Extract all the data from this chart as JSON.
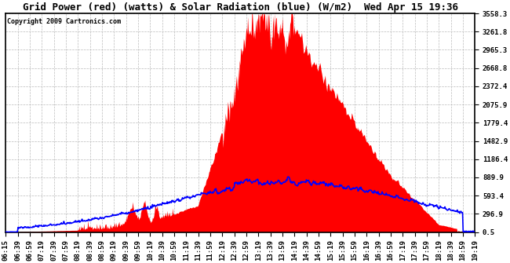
{
  "title": "Grid Power (red) (watts) & Solar Radiation (blue) (W/m2)  Wed Apr 15 19:36",
  "copyright": "Copyright 2009 Cartronics.com",
  "y_ticks": [
    0.5,
    296.9,
    593.4,
    889.9,
    1186.4,
    1482.9,
    1779.4,
    2075.9,
    2372.4,
    2668.8,
    2965.3,
    3261.8,
    3558.3
  ],
  "ylim": [
    0.5,
    3558.3
  ],
  "x_labels": [
    "06:15",
    "06:39",
    "06:59",
    "07:19",
    "07:39",
    "07:59",
    "08:19",
    "08:39",
    "08:59",
    "09:19",
    "09:39",
    "09:59",
    "10:19",
    "10:39",
    "10:59",
    "11:19",
    "11:39",
    "11:59",
    "12:19",
    "12:39",
    "12:59",
    "13:19",
    "13:39",
    "13:59",
    "14:19",
    "14:39",
    "14:59",
    "15:19",
    "15:39",
    "15:59",
    "16:19",
    "16:39",
    "16:59",
    "17:19",
    "17:39",
    "17:59",
    "18:19",
    "18:39",
    "18:59",
    "19:19"
  ],
  "background_color": "#ffffff",
  "plot_bg_color": "#ffffff",
  "grid_color": "#bbbbbb",
  "red_fill_color": "#ff0000",
  "blue_line_color": "#0000ff",
  "title_fontsize": 9,
  "tick_fontsize": 6.5
}
